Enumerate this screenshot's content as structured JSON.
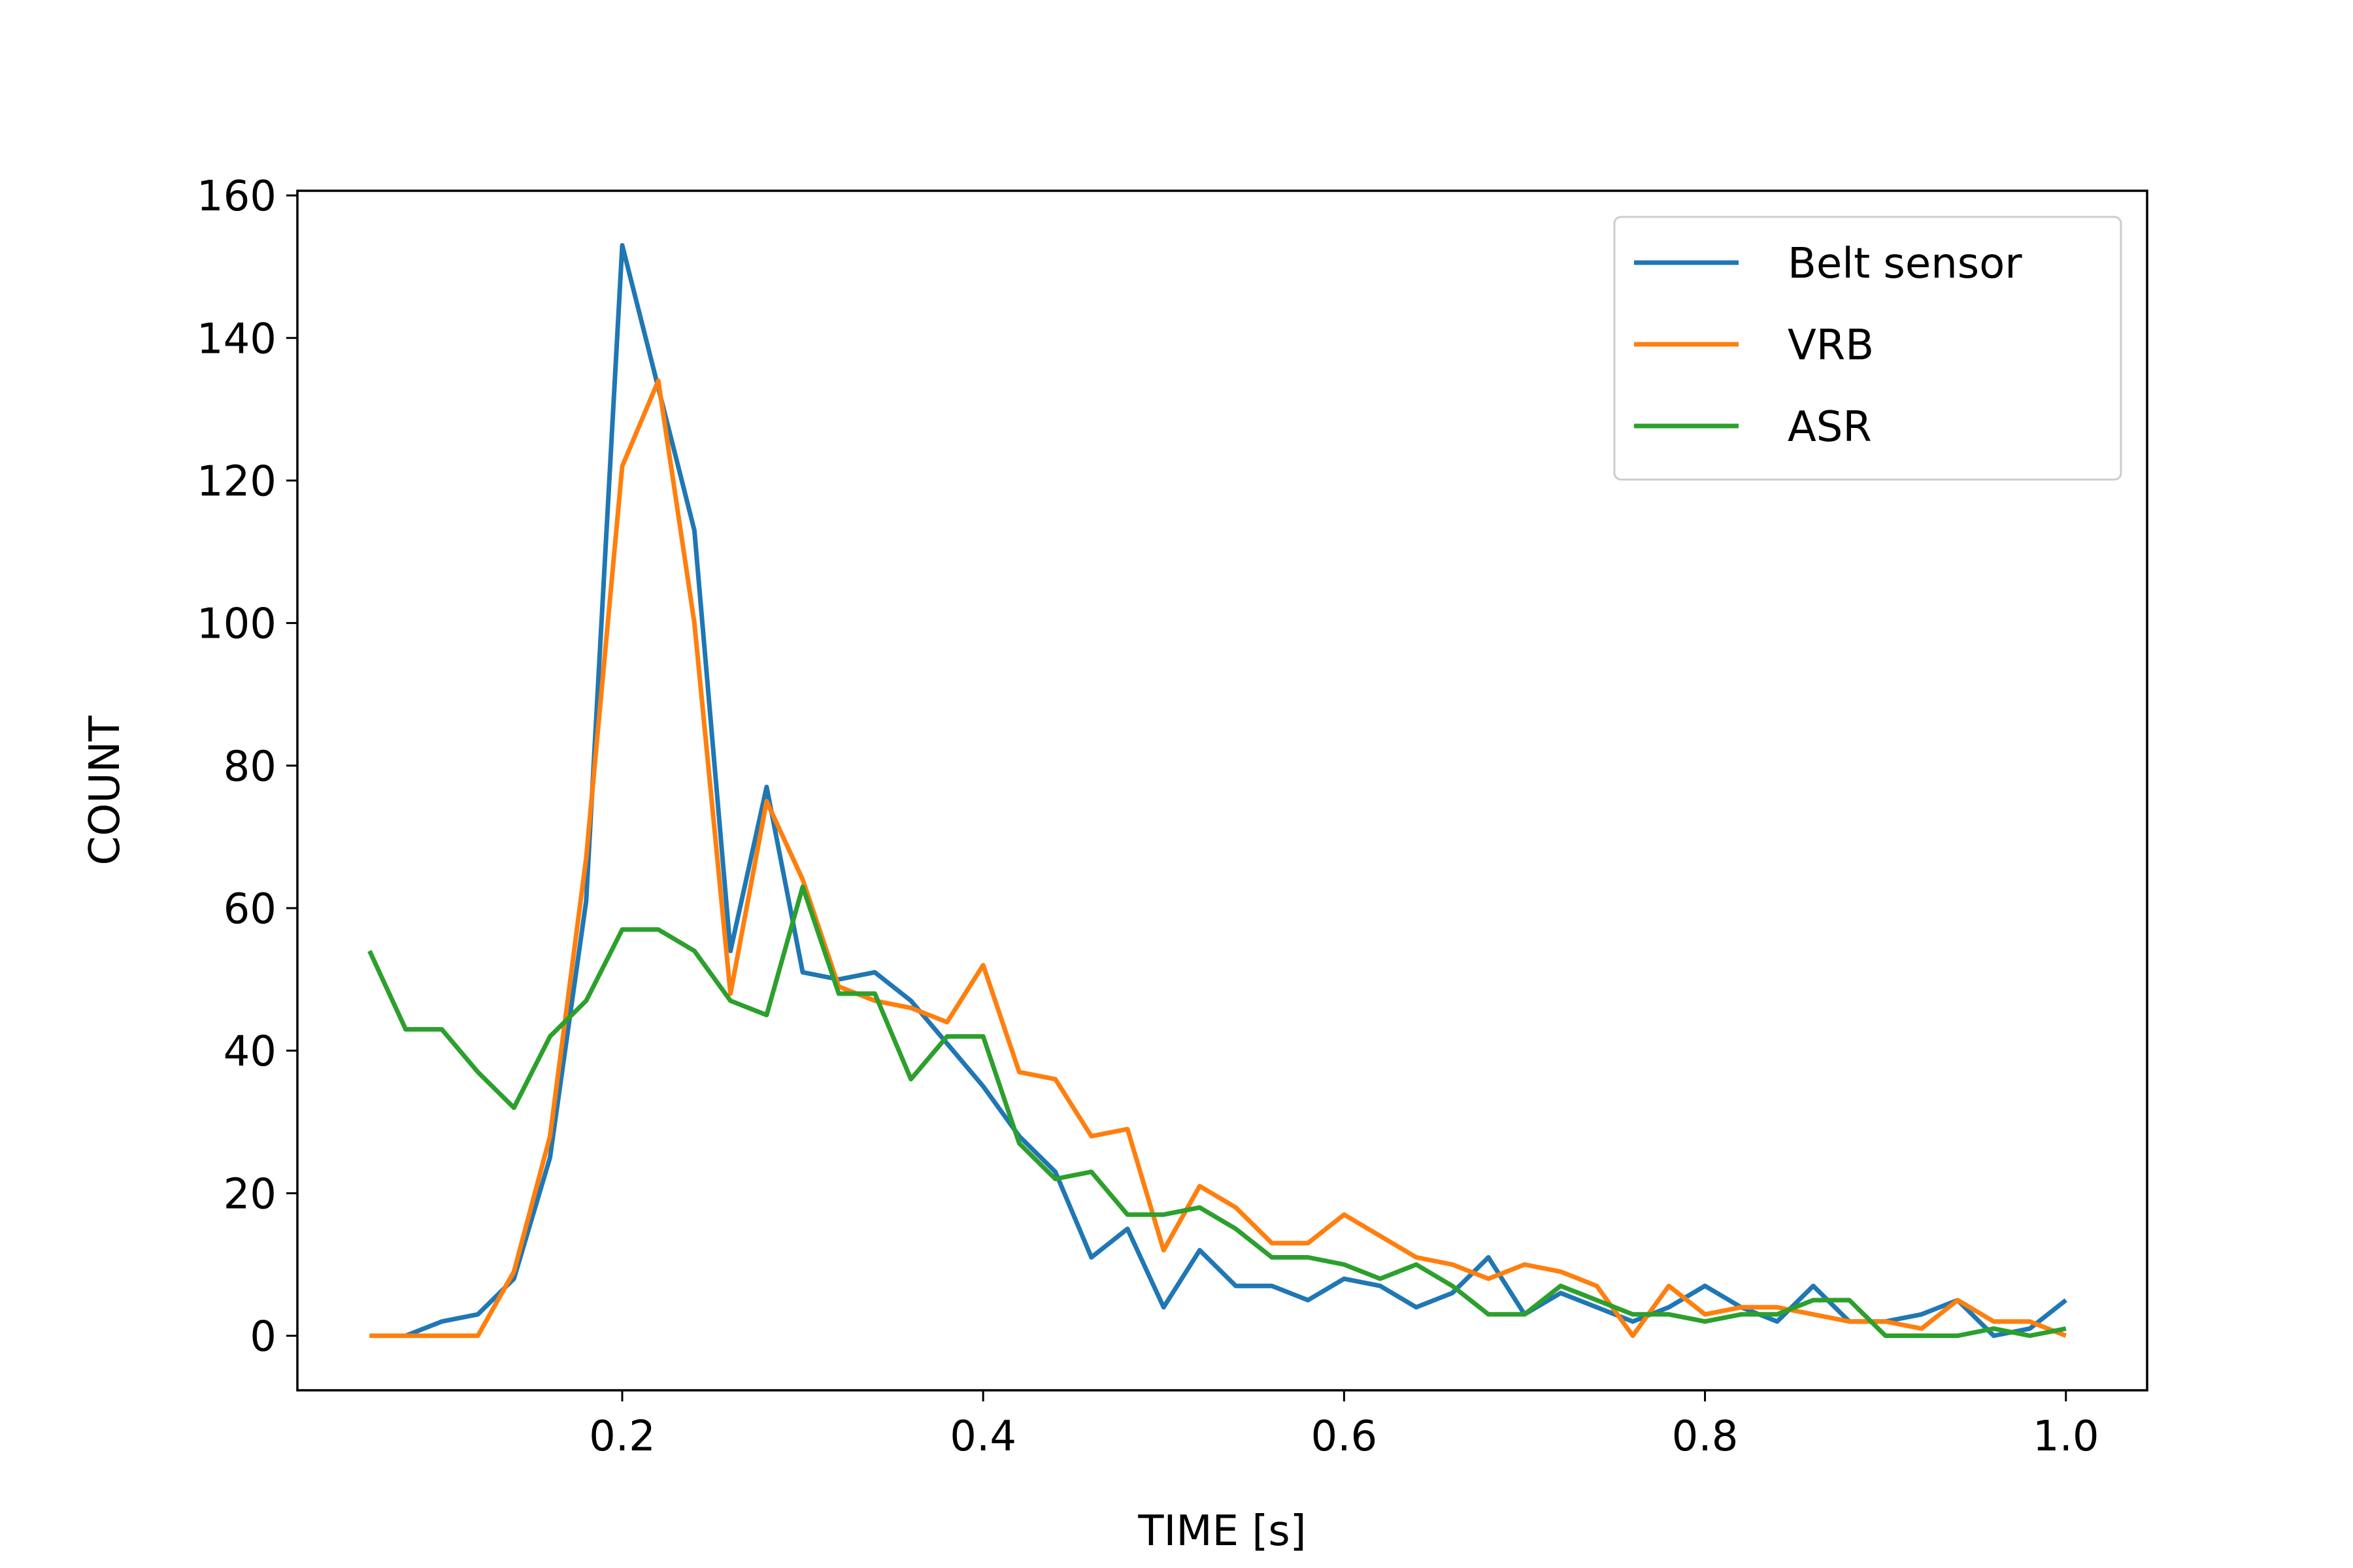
{
  "chart_data": {
    "type": "line",
    "title": "",
    "xlabel": "TIME [s]",
    "ylabel": "COUNT",
    "xlim": [
      0.02,
      1.045
    ],
    "ylim": [
      -7.65,
      160.65
    ],
    "xticks": [
      0.2,
      0.4,
      0.6,
      0.8,
      1.0
    ],
    "xtick_labels": [
      "0.2",
      "0.4",
      "0.6",
      "0.8",
      "1.0"
    ],
    "yticks": [
      0,
      20,
      40,
      60,
      80,
      100,
      120,
      140,
      160
    ],
    "ytick_labels": [
      "0",
      "20",
      "40",
      "60",
      "80",
      "100",
      "120",
      "140",
      "160"
    ],
    "grid": false,
    "legend_position": "top-right",
    "x": [
      0.06,
      0.08,
      0.1,
      0.12,
      0.14,
      0.16,
      0.18,
      0.2,
      0.22,
      0.24,
      0.26,
      0.28,
      0.3,
      0.32,
      0.34,
      0.36,
      0.38,
      0.4,
      0.42,
      0.44,
      0.46,
      0.48,
      0.5,
      0.52,
      0.54,
      0.56,
      0.58,
      0.6,
      0.62,
      0.64,
      0.66,
      0.68,
      0.7,
      0.72,
      0.74,
      0.76,
      0.78,
      0.8,
      0.82,
      0.84,
      0.86,
      0.88,
      0.9,
      0.92,
      0.94,
      0.96,
      0.98,
      1.0
    ],
    "series": [
      {
        "name": "Belt sensor",
        "color": "#1f77b4",
        "values": [
          0,
          0,
          2,
          3,
          8,
          25,
          61,
          153,
          133,
          113,
          54,
          77,
          51,
          50,
          51,
          47,
          41,
          35,
          28,
          23,
          11,
          15,
          4,
          12,
          7,
          7,
          5,
          8,
          7,
          4,
          6,
          11,
          3,
          6,
          4,
          2,
          4,
          7,
          4,
          2,
          7,
          2,
          2,
          3,
          5,
          0,
          1,
          5
        ]
      },
      {
        "name": "VRB",
        "color": "#ff7f0e",
        "values": [
          0,
          0,
          0,
          0,
          9,
          28,
          67,
          122,
          134,
          100,
          48,
          75,
          64,
          49,
          47,
          46,
          44,
          52,
          37,
          36,
          28,
          29,
          12,
          21,
          18,
          13,
          13,
          17,
          14,
          11,
          10,
          8,
          10,
          9,
          7,
          0,
          7,
          3,
          4,
          4,
          3,
          2,
          2,
          1,
          5,
          2,
          2,
          0
        ]
      },
      {
        "name": "ASR",
        "color": "#2ca02c",
        "values": [
          54,
          43,
          43,
          37,
          32,
          42,
          47,
          57,
          57,
          54,
          47,
          45,
          63,
          48,
          48,
          36,
          42,
          42,
          27,
          22,
          23,
          17,
          17,
          18,
          15,
          11,
          11,
          10,
          8,
          10,
          7,
          3,
          3,
          7,
          5,
          3,
          3,
          2,
          3,
          3,
          5,
          5,
          0,
          0,
          0,
          1,
          0,
          1
        ]
      }
    ]
  }
}
